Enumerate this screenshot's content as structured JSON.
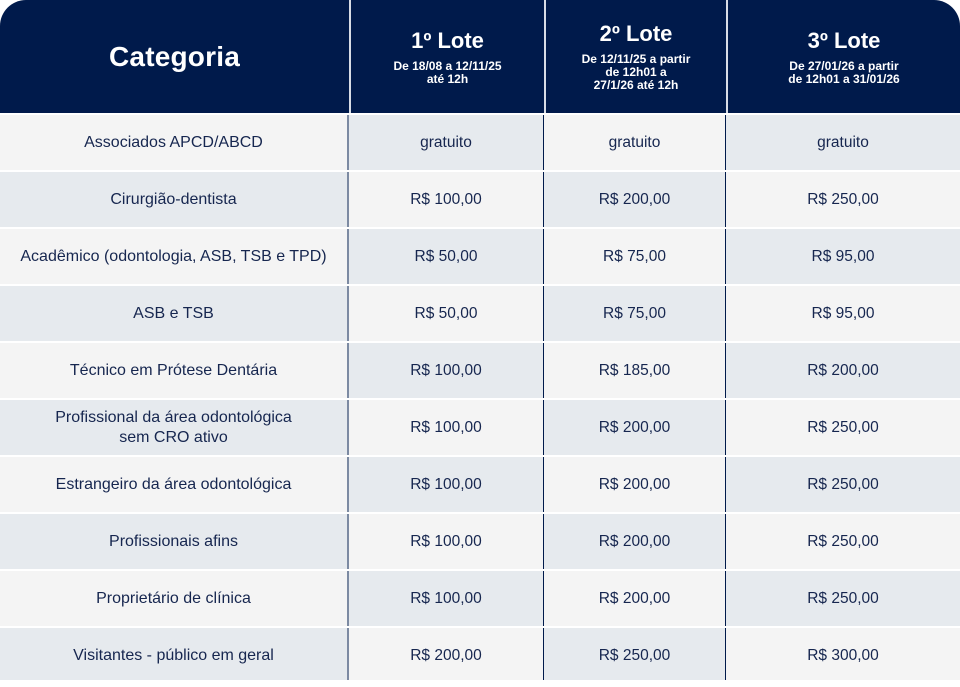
{
  "header": {
    "category_label": "Categoria",
    "lotes": [
      {
        "title": "1º Lote",
        "subtitle": "De 18/08 a 12/11/25\naté 12h"
      },
      {
        "title": "2º Lote",
        "subtitle": "De 12/11/25  a partir\nde 12h01 a\n27/1/26 até 12h"
      },
      {
        "title": "3º Lote",
        "subtitle": "De 27/01/26  a partir\nde 12h01 a 31/01/26"
      }
    ]
  },
  "rows": [
    {
      "category": "Associados APCD/ABCD",
      "prices": [
        "gratuito",
        "gratuito",
        "gratuito"
      ]
    },
    {
      "category": "Cirurgião-dentista",
      "prices": [
        "R$ 100,00",
        "R$ 200,00",
        "R$ 250,00"
      ]
    },
    {
      "category": "Acadêmico (odontologia, ASB, TSB e TPD)",
      "prices": [
        "R$ 50,00",
        "R$ 75,00",
        "R$ 95,00"
      ]
    },
    {
      "category": "ASB e TSB",
      "prices": [
        "R$ 50,00",
        "R$ 75,00",
        "R$ 95,00"
      ]
    },
    {
      "category": "Técnico em Prótese Dentária",
      "prices": [
        "R$ 100,00",
        "R$ 185,00",
        "R$ 200,00"
      ]
    },
    {
      "category": "Profissional da área odontológica\nsem CRO ativo",
      "prices": [
        "R$ 100,00",
        "R$ 200,00",
        "R$ 250,00"
      ]
    },
    {
      "category": "Estrangeiro da área odontológica",
      "prices": [
        "R$ 100,00",
        "R$ 200,00",
        "R$ 250,00"
      ]
    },
    {
      "category": "Profissionais afins",
      "prices": [
        "R$ 100,00",
        "R$ 200,00",
        "R$ 250,00"
      ]
    },
    {
      "category": "Proprietário de clínica",
      "prices": [
        "R$ 100,00",
        "R$ 200,00",
        "R$ 250,00"
      ]
    },
    {
      "category": "Visitantes - público em geral",
      "prices": [
        "R$ 200,00",
        "R$ 250,00",
        "R$ 300,00"
      ]
    }
  ],
  "colors": {
    "header_bg": "#001a4b",
    "cell_light": "#f4f4f4",
    "cell_dark": "#e6eaee",
    "text": "#16264f",
    "category_divider": "#7c8aa2"
  }
}
